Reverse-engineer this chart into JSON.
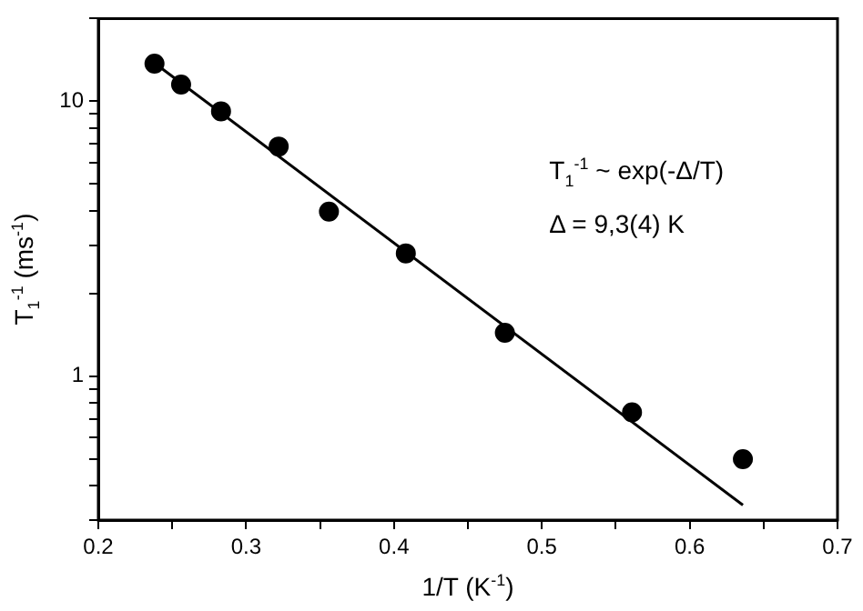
{
  "chart_data": {
    "type": "scatter",
    "xlabel": "1/T (K$^{-1}$)",
    "ylabel": "T$_{1}$$^{-1}$ (ms$^{-1}$)",
    "annotations": [
      "T$_{1}$$^{-1}$ ~ exp(-Δ/T)",
      "Δ = 9,3(4) K"
    ],
    "x": [
      0.238,
      0.256,
      0.283,
      0.322,
      0.356,
      0.408,
      0.475,
      0.561,
      0.636
    ],
    "series": [
      {
        "color": "#000000",
        "marker": "circle",
        "values": [
          13.7,
          11.5,
          9.2,
          6.85,
          3.97,
          2.8,
          1.44,
          0.74,
          0.5
        ]
      },
      {
        "type": "line",
        "color": "#000000",
        "marker": "none",
        "line_style": "solid",
        "x": [
          0.241,
          0.636
        ],
        "values": [
          13.4,
          0.34
        ]
      }
    ],
    "log": "y",
    "xlim": [
      0.2,
      0.7
    ],
    "ylim": [
      0.3,
      20
    ],
    "xticks": [
      0.2,
      {
        "value": 0.25,
        "label": null
      },
      0.3,
      {
        "value": 0.35,
        "label": null
      },
      0.4,
      {
        "value": 0.45,
        "label": null
      },
      0.5,
      {
        "value": 0.55,
        "label": null
      },
      0.6,
      {
        "value": 0.65,
        "label": null
      },
      0.7
    ],
    "yticks": [
      {
        "value": 0.3,
        "label": null
      },
      {
        "value": 0.4,
        "label": null
      },
      {
        "value": 0.5,
        "label": null
      },
      {
        "value": 0.6,
        "label": null
      },
      {
        "value": 0.7,
        "label": null
      },
      {
        "value": 0.8,
        "label": null
      },
      {
        "value": 0.9,
        "label": null
      },
      1,
      {
        "value": 2,
        "label": null
      },
      {
        "value": 3,
        "label": null
      },
      {
        "value": 4,
        "label": null
      },
      {
        "value": 5,
        "label": null
      },
      {
        "value": 6,
        "label": null
      },
      {
        "value": 7,
        "label": null
      },
      {
        "value": 8,
        "label": null
      },
      {
        "value": 9,
        "label": null
      },
      10,
      {
        "value": 20,
        "label": null
      }
    ],
    "grid": false,
    "legend": false
  }
}
